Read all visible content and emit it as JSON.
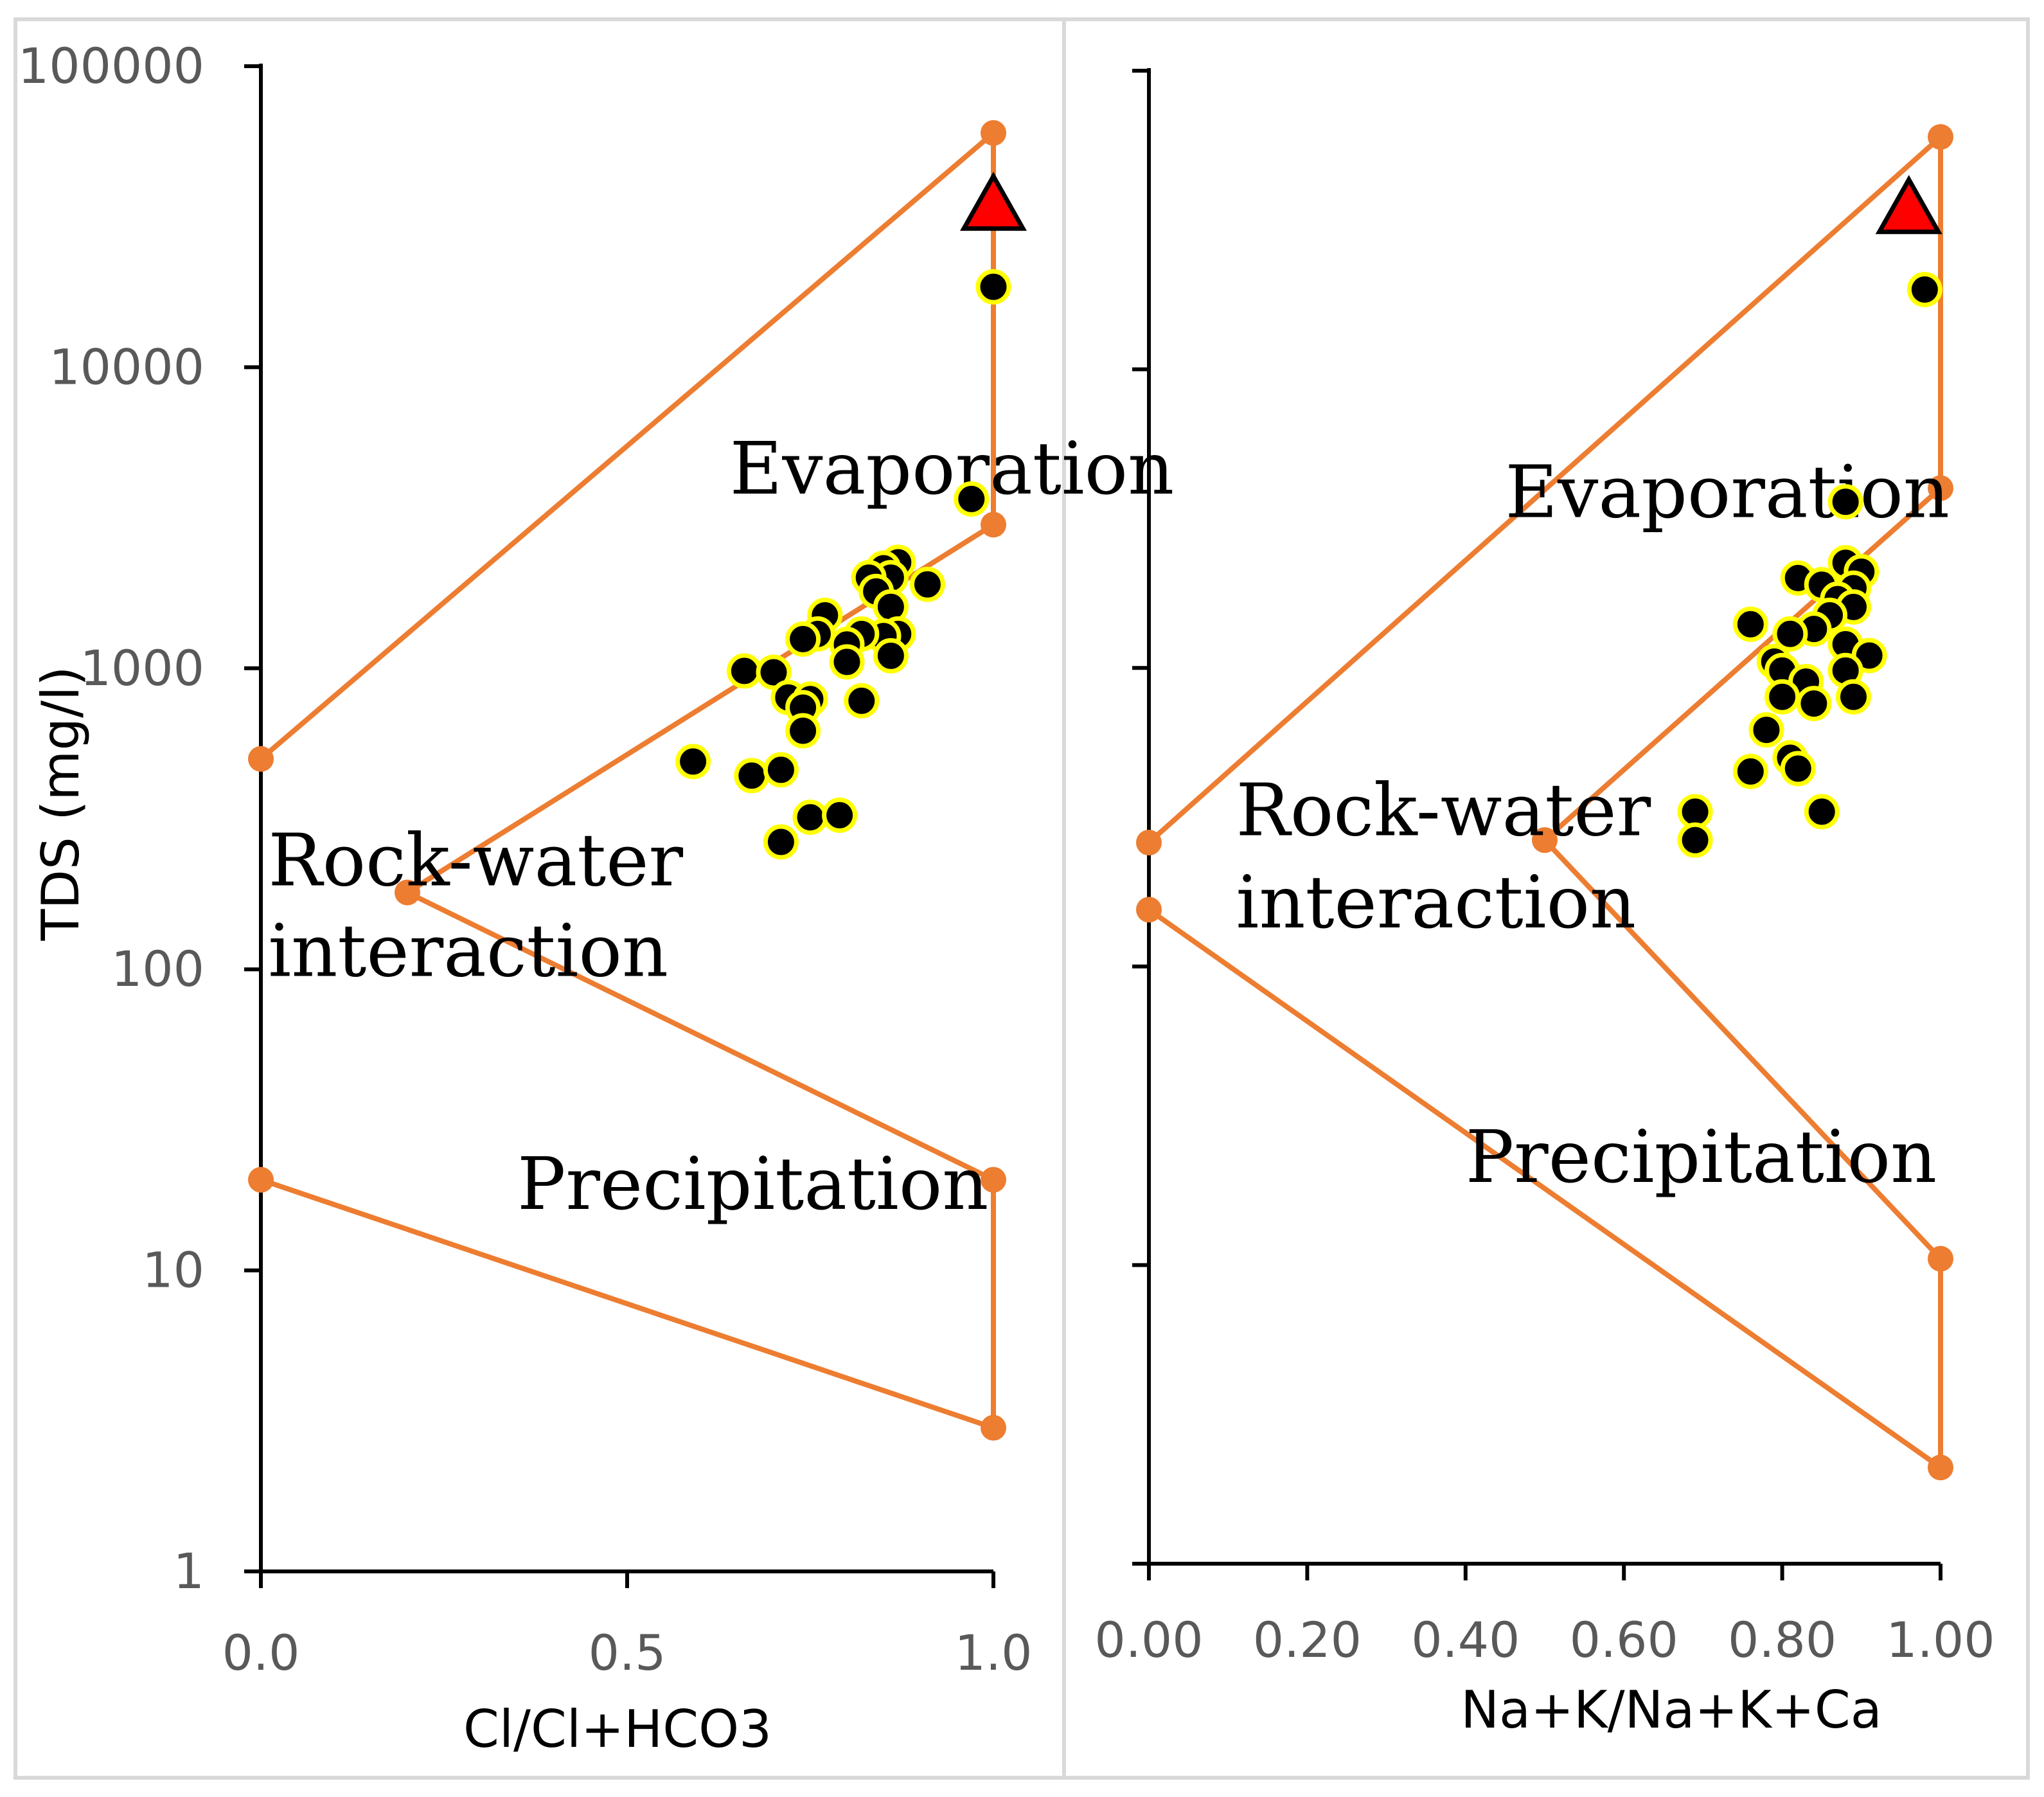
{
  "figure": {
    "type": "gibbs-diagram",
    "boundary_color": "#ED7D31",
    "point_fill": "#000000",
    "point_edge": "#FFFF00",
    "marker_fill": "#FF0000",
    "marker_edge": "#000000"
  },
  "chart_data": [
    {
      "type": "scatter",
      "id": "cl-panel",
      "title": "",
      "xlabel": "Cl/Cl+HCO3",
      "ylabel": "TDS (mg/l)",
      "xlim": [
        0,
        1
      ],
      "ylim": [
        1,
        100000
      ],
      "yscale": "log",
      "xticks": [
        {
          "value": 0,
          "label": "0.0"
        },
        {
          "value": 0.5,
          "label": "0.5"
        },
        {
          "value": 1,
          "label": "1.0"
        }
      ],
      "yticks": [
        {
          "value": 1,
          "label": "1"
        },
        {
          "value": 10,
          "label": "10"
        },
        {
          "value": 100,
          "label": "100"
        },
        {
          "value": 1000,
          "label": "1000"
        },
        {
          "value": 10000,
          "label": "10000"
        },
        {
          "value": 100000,
          "label": "100000"
        }
      ],
      "boundaries": [
        {
          "name": "upper-envelope",
          "points": [
            [
              0,
              500
            ],
            [
              1,
              60000
            ],
            [
              1,
              3000
            ],
            [
              0.2,
              180
            ],
            [
              1,
              20
            ],
            [
              1,
              3
            ],
            [
              0,
              20
            ]
          ]
        }
      ],
      "boundary_dots": [
        [
          0,
          500
        ],
        [
          1,
          60000
        ],
        [
          1,
          3000
        ],
        [
          0.2,
          180
        ],
        [
          1,
          20
        ],
        [
          1,
          3
        ],
        [
          0,
          20
        ]
      ],
      "regions": [
        {
          "label": "Evaporation",
          "x": 0.64,
          "y": 3800
        },
        {
          "label": "Rock-water",
          "x": 0.01,
          "y": 190
        },
        {
          "label": "interaction",
          "x": 0.01,
          "y": 95
        },
        {
          "label": "Precipitation",
          "x": 0.35,
          "y": 16
        }
      ],
      "reference_marker": {
        "name": "seawater",
        "x": 1.0,
        "y": 34000
      },
      "samples": [
        [
          1.0,
          18500
        ],
        [
          0.97,
          3650
        ],
        [
          0.91,
          1900
        ],
        [
          0.87,
          2250
        ],
        [
          0.85,
          2150
        ],
        [
          0.86,
          2000
        ],
        [
          0.83,
          2000
        ],
        [
          0.84,
          1800
        ],
        [
          0.86,
          1600
        ],
        [
          0.87,
          1300
        ],
        [
          0.85,
          1280
        ],
        [
          0.86,
          1100
        ],
        [
          0.82,
          1300
        ],
        [
          0.8,
          1200
        ],
        [
          0.77,
          1500
        ],
        [
          0.76,
          1300
        ],
        [
          0.74,
          1250
        ],
        [
          0.8,
          1050
        ],
        [
          0.66,
          980
        ],
        [
          0.7,
          970
        ],
        [
          0.72,
          800
        ],
        [
          0.75,
          790
        ],
        [
          0.74,
          740
        ],
        [
          0.82,
          780
        ],
        [
          0.74,
          620
        ],
        [
          0.59,
          490
        ],
        [
          0.67,
          440
        ],
        [
          0.71,
          460
        ],
        [
          0.75,
          320
        ],
        [
          0.79,
          325
        ],
        [
          0.71,
          265
        ]
      ]
    },
    {
      "type": "scatter",
      "id": "na-panel",
      "title": "",
      "xlabel": "Na+K/Na+K+Ca",
      "ylabel": "",
      "xlim": [
        0,
        1
      ],
      "ylim": [
        1,
        100000
      ],
      "yscale": "log",
      "xticks": [
        {
          "value": 0,
          "label": "0.00"
        },
        {
          "value": 0.2,
          "label": "0.20"
        },
        {
          "value": 0.4,
          "label": "0.40"
        },
        {
          "value": 0.6,
          "label": "0.60"
        },
        {
          "value": 0.8,
          "label": "0.80"
        },
        {
          "value": 1,
          "label": "1.00"
        }
      ],
      "yticks": [
        {
          "value": 1,
          "label": ""
        },
        {
          "value": 10,
          "label": ""
        },
        {
          "value": 100,
          "label": ""
        },
        {
          "value": 1000,
          "label": ""
        },
        {
          "value": 10000,
          "label": ""
        },
        {
          "value": 100000,
          "label": ""
        }
      ],
      "boundaries": [
        {
          "name": "upper-envelope",
          "points": [
            [
              0,
              260
            ],
            [
              1,
              60000
            ],
            [
              1,
              4000
            ],
            [
              0.5,
              265
            ],
            [
              1,
              10.5
            ],
            [
              1,
              2.1
            ],
            [
              0,
              155
            ]
          ]
        }
      ],
      "boundary_dots": [
        [
          0,
          260
        ],
        [
          1,
          60000
        ],
        [
          1,
          4000
        ],
        [
          0.5,
          265
        ],
        [
          1,
          10.5
        ],
        [
          1,
          2.1
        ],
        [
          0,
          155
        ]
      ],
      "regions": [
        {
          "label": "Evaporation",
          "x": 0.45,
          "y": 3200
        },
        {
          "label": "Rock-water",
          "x": 0.11,
          "y": 275
        },
        {
          "label": "interaction",
          "x": 0.11,
          "y": 135
        },
        {
          "label": "Precipitation",
          "x": 0.4,
          "y": 19
        }
      ],
      "reference_marker": {
        "name": "seawater",
        "x": 0.96,
        "y": 34000
      },
      "samples": [
        [
          0.98,
          18500
        ],
        [
          0.88,
          3600
        ],
        [
          0.88,
          2250
        ],
        [
          0.9,
          2100
        ],
        [
          0.82,
          2000
        ],
        [
          0.85,
          1900
        ],
        [
          0.89,
          1850
        ],
        [
          0.87,
          1700
        ],
        [
          0.89,
          1600
        ],
        [
          0.86,
          1500
        ],
        [
          0.76,
          1400
        ],
        [
          0.84,
          1350
        ],
        [
          0.81,
          1300
        ],
        [
          0.88,
          1200
        ],
        [
          0.91,
          1100
        ],
        [
          0.79,
          1050
        ],
        [
          0.8,
          980
        ],
        [
          0.88,
          980
        ],
        [
          0.83,
          900
        ],
        [
          0.8,
          800
        ],
        [
          0.89,
          800
        ],
        [
          0.84,
          760
        ],
        [
          0.78,
          620
        ],
        [
          0.81,
          500
        ],
        [
          0.82,
          460
        ],
        [
          0.76,
          450
        ],
        [
          0.69,
          330
        ],
        [
          0.85,
          330
        ],
        [
          0.69,
          265
        ]
      ]
    }
  ]
}
